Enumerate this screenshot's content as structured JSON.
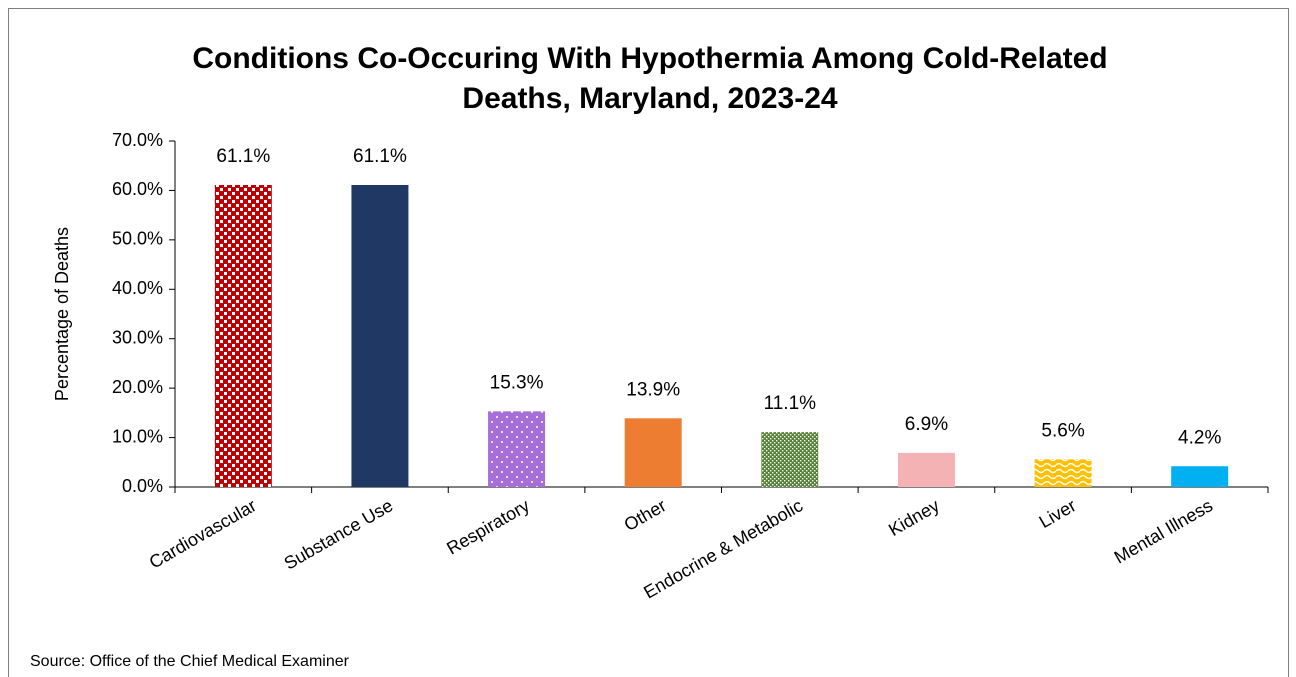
{
  "chart_data": {
    "type": "bar",
    "title": [
      "Conditions Co-Occuring With Hypothermia Among Cold-Related",
      "Deaths, Maryland, 2023-24"
    ],
    "y_label": "Percentage of Deaths",
    "source": "Source: Office of the Chief Medical Examiner",
    "categories": [
      "Cardiovascular",
      "Substance Use",
      "Respiratory",
      "Other",
      "Endocrine & Metabolic",
      "Kidney",
      "Liver",
      "Mental Illness"
    ],
    "values": [
      61.1,
      61.1,
      15.3,
      13.9,
      11.1,
      6.9,
      5.6,
      4.2
    ],
    "value_labels": [
      "61.1%",
      "61.1%",
      "15.3%",
      "13.9%",
      "11.1%",
      "6.9%",
      "5.6%",
      "4.2%"
    ],
    "colors": [
      "#c00000",
      "#203864",
      "#a66ed8",
      "#ed7d31",
      "#548235",
      "#f4b2b4",
      "#ffc000",
      "#00b0f0"
    ],
    "patterns": [
      "checker",
      "none",
      "dots",
      "none",
      "fine-dots",
      "none",
      "waves",
      "none"
    ],
    "ylim": [
      0,
      70
    ],
    "yticks": [
      {
        "value": 0,
        "label": "0.0%"
      },
      {
        "value": 10,
        "label": "10.0%"
      },
      {
        "value": 20,
        "label": "20.0%"
      },
      {
        "value": 30,
        "label": "30.0%"
      },
      {
        "value": 40,
        "label": "40.0%"
      },
      {
        "value": 50,
        "label": "50.0%"
      },
      {
        "value": 60,
        "label": "60.0%"
      },
      {
        "value": 70,
        "label": "70.0%"
      }
    ],
    "grid": false
  }
}
